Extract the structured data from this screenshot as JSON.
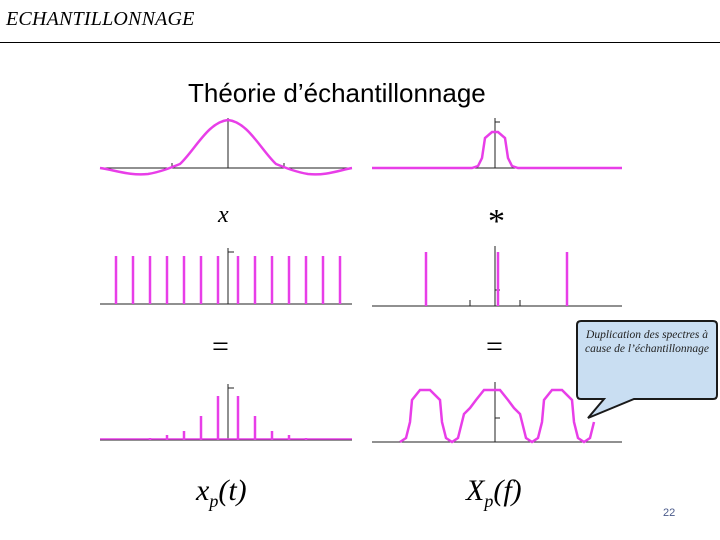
{
  "header": {
    "title": "ECHANTILLONNAGE"
  },
  "slide": {
    "title": "Théorie d’échantillonnage"
  },
  "operators": {
    "multiply_time": "x",
    "convolve_freq": "*",
    "equals_time": "=",
    "equals_freq": "="
  },
  "labels": {
    "time_result_base": "x",
    "time_result_sub": "p",
    "time_result_tail": "(t)",
    "freq_result_base": "X",
    "freq_result_sub": "p",
    "freq_result_tail": "(f)"
  },
  "callout": {
    "text": "Duplication des spectres à cause de l’échantillonnage"
  },
  "page": {
    "number": "22"
  },
  "colors": {
    "signal": "#e83ee8",
    "axis": "#222222",
    "callout_bg": "#c9def2",
    "callout_border": "#1a1a1a"
  }
}
